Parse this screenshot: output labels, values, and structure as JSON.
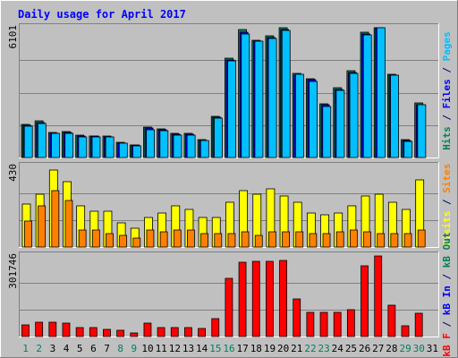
{
  "chart_data": {
    "type": "bar",
    "title": "Daily usage for April 2017",
    "days": [
      "1",
      "2",
      "3",
      "4",
      "5",
      "6",
      "7",
      "8",
      "9",
      "10",
      "11",
      "12",
      "13",
      "14",
      "15",
      "16",
      "17",
      "18",
      "19",
      "20",
      "21",
      "22",
      "23",
      "24",
      "25",
      "26",
      "27",
      "28",
      "29",
      "30",
      "31"
    ],
    "weekend_days": [
      "1",
      "2",
      "8",
      "9",
      "15",
      "16",
      "22",
      "23",
      "29",
      "30"
    ],
    "panels": [
      {
        "scale_label": "6101",
        "ymax": 6101,
        "side_labels": [
          {
            "text": "Hits",
            "color": "#00805c"
          },
          {
            "text": " / ",
            "color": "#000080"
          },
          {
            "text": "Files",
            "color": "#0000ff"
          },
          {
            "text": " / ",
            "color": "#000080"
          },
          {
            "text": "Pages",
            "color": "#00c0ff"
          }
        ],
        "series": [
          {
            "name": "Hits",
            "color": "#00805c",
            "values": [
              1570,
              1720,
              1190,
              1220,
              1040,
              1030,
              1010,
              700,
              600,
              1430,
              1350,
              1130,
              1150,
              840,
              1950,
              4660,
              6020,
              5520,
              5730,
              6101,
              3940,
              3700,
              2530,
              3270,
              4080,
              5890,
              6101,
              3930,
              830,
              2560,
              0
            ]
          },
          {
            "name": "Files",
            "color": "#0000ff",
            "values": [
              1500,
              1650,
              1150,
              1170,
              1000,
              990,
              970,
              680,
              580,
              1380,
              1300,
              1090,
              1100,
              810,
              1880,
              4580,
              5900,
              5450,
              5650,
              6030,
              3880,
              3640,
              2470,
              3200,
              4000,
              5800,
              6101,
              3870,
              800,
              2500,
              0
            ]
          },
          {
            "name": "Pages",
            "color": "#00c0ff",
            "values": [
              1460,
              1600,
              1140,
              1140,
              960,
              960,
              950,
              660,
              550,
              1320,
              1260,
              1050,
              1070,
              790,
              1840,
              4550,
              5800,
              5450,
              5600,
              5980,
              3900,
              3590,
              2410,
              3170,
              3970,
              5780,
              6101,
              3850,
              750,
              2470,
              0
            ]
          }
        ]
      },
      {
        "scale_label": "430",
        "ymax": 430,
        "side_labels": [
          {
            "text": "Visits",
            "color": "#ffff00"
          },
          {
            "text": " / ",
            "color": "#000080"
          },
          {
            "text": "Sites",
            "color": "#ff8000"
          }
        ],
        "series": [
          {
            "name": "Visits",
            "color": "#ffff00",
            "values": [
              230,
              280,
              410,
              350,
              220,
              190,
              190,
              130,
              100,
              160,
              180,
              220,
              200,
              160,
              160,
              240,
              300,
              280,
              310,
              270,
              240,
              180,
              170,
              180,
              220,
              270,
              280,
              240,
              200,
              360,
              0
            ]
          },
          {
            "name": "Sites",
            "color": "#ff8000",
            "values": [
              140,
              220,
              300,
              250,
              90,
              90,
              70,
              60,
              50,
              90,
              80,
              90,
              90,
              70,
              70,
              70,
              80,
              60,
              80,
              80,
              80,
              70,
              70,
              80,
              90,
              80,
              70,
              70,
              70,
              90,
              0
            ]
          }
        ]
      },
      {
        "scale_label": "301746",
        "ymax": 301746,
        "side_labels": [
          {
            "text": "kB F",
            "color": "#ff0000"
          },
          {
            "text": " / ",
            "color": "#000080"
          },
          {
            "text": "kB In",
            "color": "#0000ff"
          },
          {
            "text": " / ",
            "color": "#000080"
          },
          {
            "text": "kB Out",
            "color": "#00805c"
          }
        ],
        "series": [
          {
            "name": "kB F",
            "color": "#ff0000",
            "values": [
              45000,
              55000,
              55000,
              50000,
              32000,
              32000,
              27000,
              22000,
              14000,
              50000,
              34000,
              32000,
              34000,
              30000,
              68000,
              218000,
              278000,
              280000,
              280000,
              285000,
              140000,
              92000,
              92000,
              92000,
              100000,
              265000,
              301746,
              118000,
              40000,
              88000,
              0
            ]
          }
        ]
      }
    ],
    "colors": {
      "background": "#c0c0c0",
      "frame_light": "#ffffff",
      "frame_dark": "#808080",
      "grid": "#808080",
      "title": "#0000ff",
      "weekday_label": "#000000",
      "weekend_label": "#00805c"
    }
  }
}
